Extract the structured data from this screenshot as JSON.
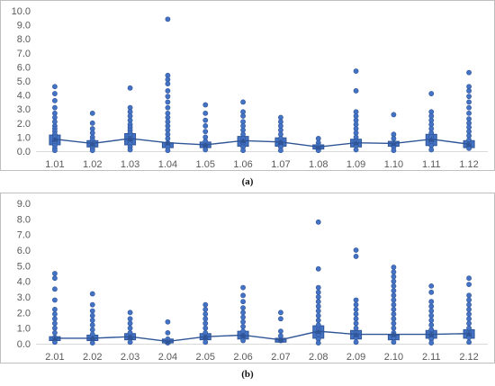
{
  "captions": {
    "a": "(a)",
    "b": "(b)"
  },
  "colors": {
    "marker": "#4472C4",
    "marker_dark": "#2F5597",
    "axis_text": "#595959",
    "gridline": "#D9D9D9",
    "frame": "#BFBFBF"
  },
  "chart_data": [
    {
      "type": "scatter",
      "panel": "a",
      "categories": [
        "1.01",
        "1.02",
        "1.03",
        "1.04",
        "1.05",
        "1.06",
        "1.07",
        "1.08",
        "1.09",
        "1.10",
        "1.11",
        "1.12"
      ],
      "ylim": [
        0,
        10
      ],
      "ytick_step": 1,
      "yticks": [
        "0.0",
        "1.0",
        "2.0",
        "3.0",
        "4.0",
        "5.0",
        "6.0",
        "7.0",
        "8.0",
        "9.0",
        "10.0"
      ],
      "grid": false,
      "mean_line": [
        0.85,
        0.55,
        0.9,
        0.6,
        0.45,
        0.75,
        0.65,
        0.3,
        0.6,
        0.55,
        0.85,
        0.5
      ],
      "box_low": [
        0.45,
        0.3,
        0.45,
        0.25,
        0.25,
        0.35,
        0.35,
        0.15,
        0.3,
        0.35,
        0.4,
        0.25
      ],
      "box_high": [
        1.15,
        0.75,
        1.25,
        0.6,
        0.65,
        1.05,
        0.95,
        0.45,
        0.85,
        0.7,
        1.2,
        0.75
      ],
      "points": [
        [
          4.6,
          4.1,
          3.6,
          3.1,
          2.7,
          2.4,
          2.1,
          1.8,
          1.6,
          1.4,
          1.2,
          1.0,
          0.8,
          0.6,
          0.4,
          0.2,
          0.05
        ],
        [
          2.7,
          2.0,
          1.6,
          1.3,
          1.0,
          0.8,
          0.6,
          0.4,
          0.2,
          0.05
        ],
        [
          4.5,
          3.1,
          2.8,
          2.5,
          2.2,
          1.9,
          1.7,
          1.5,
          1.3,
          1.1,
          0.9,
          0.7,
          0.5,
          0.3,
          0.1
        ],
        [
          9.4,
          5.4,
          5.1,
          4.8,
          4.3,
          3.9,
          3.5,
          3.1,
          2.7,
          2.4,
          2.1,
          1.8,
          1.5,
          1.2,
          0.9,
          0.6,
          0.3,
          0.05
        ],
        [
          3.3,
          2.7,
          2.2,
          1.8,
          1.4,
          1.0,
          0.7,
          0.4,
          0.1
        ],
        [
          3.5,
          2.8,
          2.5,
          2.1,
          1.8,
          1.5,
          1.2,
          0.9,
          0.6,
          0.3,
          0.05
        ],
        [
          2.4,
          2.1,
          1.8,
          1.5,
          1.2,
          0.9,
          0.6,
          0.3,
          0.05
        ],
        [
          0.9,
          0.6,
          0.4,
          0.2,
          0.05
        ],
        [
          5.7,
          4.3,
          2.8,
          2.5,
          2.2,
          1.9,
          1.6,
          1.3,
          1.0,
          0.7,
          0.4,
          0.1
        ],
        [
          2.6,
          1.2,
          0.9,
          0.6,
          0.3,
          0.05
        ],
        [
          4.1,
          2.8,
          2.5,
          2.2,
          1.9,
          1.6,
          1.3,
          1.0,
          0.7,
          0.4,
          0.1
        ],
        [
          5.6,
          4.6,
          4.3,
          3.9,
          3.5,
          3.1,
          2.7,
          2.3,
          2.0,
          1.7,
          1.4,
          1.1,
          0.8,
          0.5,
          0.2
        ]
      ]
    },
    {
      "type": "scatter",
      "panel": "b",
      "categories": [
        "2.01",
        "2.02",
        "2.03",
        "2.04",
        "2.05",
        "2.06",
        "2.07",
        "2.08",
        "2.09",
        "2.10",
        "2.11",
        "2.12"
      ],
      "ylim": [
        0,
        9
      ],
      "ytick_step": 1,
      "yticks": [
        "0.0",
        "1.0",
        "2.0",
        "3.0",
        "4.0",
        "5.0",
        "6.0",
        "7.0",
        "8.0",
        "9.0"
      ],
      "grid": false,
      "mean_line": [
        0.35,
        0.35,
        0.45,
        0.15,
        0.45,
        0.55,
        0.25,
        0.8,
        0.6,
        0.6,
        0.6,
        0.65
      ],
      "box_low": [
        0.2,
        0.2,
        0.25,
        0.05,
        0.25,
        0.3,
        0.1,
        0.35,
        0.3,
        0.25,
        0.35,
        0.35
      ],
      "box_high": [
        0.45,
        0.55,
        0.65,
        0.3,
        0.65,
        0.8,
        0.35,
        1.15,
        0.85,
        0.55,
        0.85,
        0.9
      ],
      "points": [
        [
          4.5,
          4.2,
          3.5,
          2.8,
          2.2,
          1.9,
          1.6,
          1.3,
          1.0,
          0.7,
          0.4,
          0.1
        ],
        [
          3.2,
          2.5,
          2.1,
          1.8,
          1.5,
          1.2,
          0.9,
          0.6,
          0.3,
          0.05
        ],
        [
          2.0,
          1.6,
          1.3,
          1.0,
          0.7,
          0.4,
          0.1
        ],
        [
          1.4,
          0.7,
          0.3,
          0.05
        ],
        [
          2.5,
          2.2,
          1.9,
          1.6,
          1.3,
          1.0,
          0.7,
          0.4,
          0.1
        ],
        [
          3.6,
          3.1,
          2.7,
          2.3,
          2.0,
          1.7,
          1.4,
          1.1,
          0.8,
          0.5,
          0.2
        ],
        [
          2.0,
          1.6,
          0.8,
          0.5,
          0.2
        ],
        [
          7.8,
          4.8,
          3.6,
          3.3,
          3.0,
          2.7,
          2.4,
          2.1,
          1.8,
          1.5,
          1.2,
          0.9,
          0.6,
          0.3,
          0.05
        ],
        [
          6.0,
          5.6,
          2.8,
          2.5,
          2.2,
          1.9,
          1.6,
          1.3,
          1.0,
          0.7,
          0.4,
          0.1
        ],
        [
          4.9,
          4.6,
          4.3,
          4.0,
          3.7,
          3.4,
          3.1,
          2.8,
          2.5,
          2.2,
          1.9,
          1.6,
          1.3,
          1.0,
          0.7,
          0.4,
          0.1
        ],
        [
          3.7,
          3.3,
          2.7,
          2.4,
          2.1,
          1.8,
          1.5,
          1.2,
          0.9,
          0.6,
          0.3,
          0.05
        ],
        [
          4.2,
          3.8,
          3.1,
          2.8,
          2.5,
          2.2,
          1.9,
          1.6,
          1.3,
          1.0,
          0.7,
          0.4,
          0.1
        ]
      ]
    }
  ]
}
